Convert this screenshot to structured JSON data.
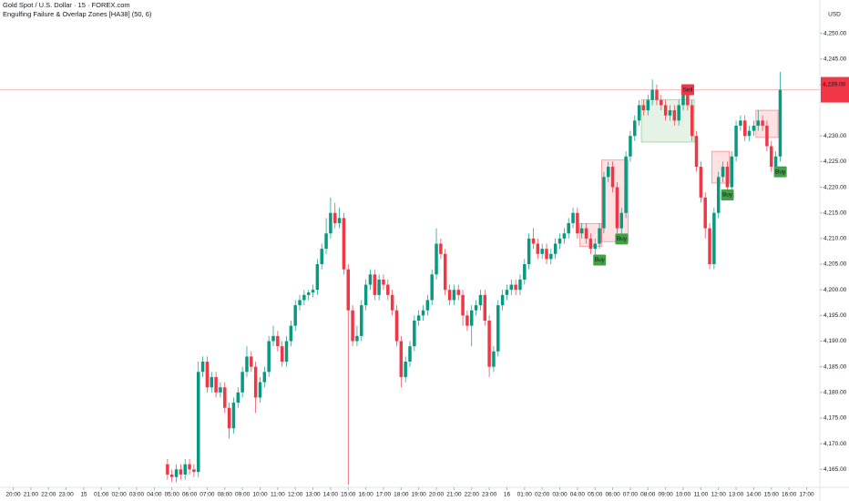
{
  "chart_data": {
    "type": "candlestick",
    "title": "Gold Spot / U.S. Dollar · 15 · FOREX.com",
    "subtitle": "Engulfing Failure & Overlap Zones [HA38] (50, 6)",
    "currency": "USD",
    "up_color": "#089981",
    "down_color": "#f23645",
    "ylim": [
      4161.5,
      4256.5
    ],
    "xlim": [
      -38,
      148
    ],
    "yticks": [
      {
        "value": 4165,
        "label": "4,165.00"
      },
      {
        "value": 4170,
        "label": "4,170.00"
      },
      {
        "value": 4175,
        "label": "4,175.00"
      },
      {
        "value": 4180,
        "label": "4,180.00"
      },
      {
        "value": 4185,
        "label": "4,185.00"
      },
      {
        "value": 4190,
        "label": "4,190.00"
      },
      {
        "value": 4195,
        "label": "4,195.00"
      },
      {
        "value": 4200,
        "label": "4,200.00"
      },
      {
        "value": 4205,
        "label": "4,205.00"
      },
      {
        "value": 4210,
        "label": "4,210.00"
      },
      {
        "value": 4215,
        "label": "4,215.00"
      },
      {
        "value": 4220,
        "label": "4,220.00"
      },
      {
        "value": 4225,
        "label": "4,225.00"
      },
      {
        "value": 4230,
        "label": "4,230.00"
      },
      {
        "value": 4240,
        "label": "4,240.00"
      },
      {
        "value": 4245,
        "label": "4,245.00"
      },
      {
        "value": 4250,
        "label": "4,250.00"
      }
    ],
    "xticks": [
      {
        "value": -35,
        "label": "20:00"
      },
      {
        "value": -31,
        "label": "21:00"
      },
      {
        "value": -27,
        "label": "22:00"
      },
      {
        "value": -23,
        "label": "23:00"
      },
      {
        "value": -19,
        "label": "15"
      },
      {
        "value": -15,
        "label": "01:00"
      },
      {
        "value": -11,
        "label": "02:00"
      },
      {
        "value": -7,
        "label": "03:00"
      },
      {
        "value": -3,
        "label": "04:00"
      },
      {
        "value": 1,
        "label": "05:00"
      },
      {
        "value": 5,
        "label": "06:00"
      },
      {
        "value": 9,
        "label": "07:00"
      },
      {
        "value": 13,
        "label": "08:00"
      },
      {
        "value": 17,
        "label": "09:00"
      },
      {
        "value": 21,
        "label": "10:00"
      },
      {
        "value": 25,
        "label": "11:00"
      },
      {
        "value": 29,
        "label": "12:00"
      },
      {
        "value": 33,
        "label": "13:00"
      },
      {
        "value": 37,
        "label": "14:00"
      },
      {
        "value": 41,
        "label": "15:00"
      },
      {
        "value": 45,
        "label": "16:00"
      },
      {
        "value": 49,
        "label": "17:00"
      },
      {
        "value": 53,
        "label": "18:00"
      },
      {
        "value": 57,
        "label": "19:00"
      },
      {
        "value": 61,
        "label": "20:00"
      },
      {
        "value": 65,
        "label": "21:00"
      },
      {
        "value": 69,
        "label": "22:00"
      },
      {
        "value": 73,
        "label": "23:00"
      },
      {
        "value": 77,
        "label": "16"
      },
      {
        "value": 81,
        "label": "01:00"
      },
      {
        "value": 85,
        "label": "02:00"
      },
      {
        "value": 89,
        "label": "03:00"
      },
      {
        "value": 93,
        "label": "04:00"
      },
      {
        "value": 97,
        "label": "05:00"
      },
      {
        "value": 101,
        "label": "06:00"
      },
      {
        "value": 105,
        "label": "07:00"
      },
      {
        "value": 109,
        "label": "08:00"
      },
      {
        "value": 113,
        "label": "09:00"
      },
      {
        "value": 117,
        "label": "10:00"
      },
      {
        "value": 121,
        "label": "11:00"
      },
      {
        "value": 125,
        "label": "12:00"
      },
      {
        "value": 129,
        "label": "13:00"
      },
      {
        "value": 133,
        "label": "14:00"
      },
      {
        "value": 137,
        "label": "15:00"
      },
      {
        "value": 141,
        "label": "16:00"
      },
      {
        "value": 145,
        "label": "17:00"
      }
    ],
    "last_price": 4239,
    "last_price_label": "4,239.00",
    "candles": [
      [
        4166,
        4167,
        4163,
        4164
      ],
      [
        4164,
        4165,
        4162.5,
        4163.5
      ],
      [
        4163.5,
        4166,
        4162.5,
        4165
      ],
      [
        4165,
        4166,
        4163,
        4164
      ],
      [
        4164,
        4167,
        4163,
        4166
      ],
      [
        4166,
        4167,
        4164,
        4165
      ],
      [
        4165,
        4166,
        4163.5,
        4164.5
      ],
      [
        4164.5,
        4186,
        4163.5,
        4184
      ],
      [
        4184,
        4187,
        4183,
        4186
      ],
      [
        4186,
        4187,
        4180,
        4181
      ],
      [
        4181,
        4184,
        4180,
        4183
      ],
      [
        4183,
        4184,
        4179,
        4180
      ],
      [
        4180,
        4182,
        4179,
        4181
      ],
      [
        4181,
        4182,
        4176,
        4177
      ],
      [
        4177,
        4178,
        4171,
        4173
      ],
      [
        4173,
        4179,
        4172,
        4178
      ],
      [
        4178,
        4181,
        4177,
        4180
      ],
      [
        4180,
        4185,
        4179,
        4184
      ],
      [
        4184,
        4189,
        4183,
        4187
      ],
      [
        4187,
        4188,
        4184,
        4185
      ],
      [
        4185,
        4186,
        4176,
        4179
      ],
      [
        4179,
        4183,
        4178,
        4182
      ],
      [
        4182,
        4185,
        4181,
        4184
      ],
      [
        4184,
        4191,
        4183,
        4190
      ],
      [
        4190,
        4193,
        4189,
        4191
      ],
      [
        4191,
        4192,
        4188,
        4189
      ],
      [
        4189,
        4190,
        4185,
        4186
      ],
      [
        4186,
        4191,
        4185,
        4190
      ],
      [
        4190,
        4194,
        4189,
        4193
      ],
      [
        4193,
        4198,
        4192,
        4197
      ],
      [
        4197,
        4199,
        4196,
        4198
      ],
      [
        4198,
        4200,
        4197,
        4199
      ],
      [
        4199,
        4200,
        4198,
        4199.5
      ],
      [
        4199.5,
        4201,
        4198.5,
        4200
      ],
      [
        4200,
        4206,
        4199,
        4205
      ],
      [
        4205,
        4209,
        4204,
        4208
      ],
      [
        4208,
        4214,
        4207,
        4211
      ],
      [
        4211,
        4218,
        4210,
        4215
      ],
      [
        4215,
        4217,
        4212,
        4213
      ],
      [
        4213,
        4216,
        4212,
        4214
      ],
      [
        4214,
        4215,
        4203,
        4204
      ],
      [
        4204,
        4205,
        4162,
        4196
      ],
      [
        4196,
        4197,
        4189,
        4190
      ],
      [
        4190,
        4193,
        4189,
        4191
      ],
      [
        4191,
        4198,
        4190,
        4197
      ],
      [
        4197,
        4202,
        4196,
        4201
      ],
      [
        4201,
        4204,
        4200,
        4203
      ],
      [
        4203,
        4204,
        4198,
        4199
      ],
      [
        4199,
        4203,
        4198,
        4202
      ],
      [
        4202,
        4203,
        4200,
        4201
      ],
      [
        4201,
        4202,
        4198,
        4199
      ],
      [
        4199,
        4200,
        4195,
        4196
      ],
      [
        4196,
        4197,
        4189,
        4190
      ],
      [
        4190,
        4191,
        4181,
        4183
      ],
      [
        4183,
        4187,
        4182,
        4186
      ],
      [
        4186,
        4190,
        4185,
        4189
      ],
      [
        4189,
        4195,
        4188,
        4194
      ],
      [
        4194,
        4196,
        4193,
        4195
      ],
      [
        4195,
        4197,
        4194,
        4196
      ],
      [
        4196,
        4199,
        4195,
        4198
      ],
      [
        4198,
        4204,
        4197,
        4203
      ],
      [
        4203,
        4212,
        4202,
        4209
      ],
      [
        4209,
        4210,
        4206,
        4207
      ],
      [
        4207,
        4208,
        4199,
        4200
      ],
      [
        4200,
        4201,
        4197,
        4198
      ],
      [
        4198,
        4201,
        4197,
        4200
      ],
      [
        4200,
        4201,
        4198,
        4199
      ],
      [
        4199,
        4200,
        4193,
        4195
      ],
      [
        4195,
        4196,
        4192,
        4193
      ],
      [
        4193,
        4197,
        4189,
        4196
      ],
      [
        4196,
        4198,
        4195,
        4197
      ],
      [
        4197,
        4200,
        4196,
        4199
      ],
      [
        4199,
        4200,
        4193,
        4194
      ],
      [
        4194,
        4195,
        4183,
        4185
      ],
      [
        4185,
        4189,
        4184,
        4188
      ],
      [
        4188,
        4198,
        4187,
        4197
      ],
      [
        4197,
        4200,
        4196,
        4199
      ],
      [
        4199,
        4201,
        4198,
        4200
      ],
      [
        4200,
        4202,
        4199,
        4201
      ],
      [
        4201,
        4202,
        4199,
        4200
      ],
      [
        4200,
        4203,
        4199,
        4202
      ],
      [
        4202,
        4206,
        4201,
        4205
      ],
      [
        4205,
        4211,
        4204,
        4210
      ],
      [
        4210,
        4212,
        4208,
        4209
      ],
      [
        4209,
        4210,
        4206,
        4207
      ],
      [
        4207,
        4209,
        4206,
        4208
      ],
      [
        4208,
        4209,
        4205,
        4206
      ],
      [
        4206,
        4208,
        4205,
        4207
      ],
      [
        4207,
        4210,
        4206,
        4209
      ],
      [
        4209,
        4211,
        4208,
        4210
      ],
      [
        4210,
        4212,
        4209,
        4211
      ],
      [
        4211,
        4214,
        4210,
        4213
      ],
      [
        4213,
        4216,
        4212,
        4215
      ],
      [
        4215,
        4216,
        4210,
        4211
      ],
      [
        4211,
        4213,
        4210,
        4212
      ],
      [
        4212,
        4213,
        4209,
        4210
      ],
      [
        4210,
        4211,
        4207,
        4208
      ],
      [
        4208,
        4210,
        4206,
        4209
      ],
      [
        4209,
        4213,
        4208,
        4212
      ],
      [
        4212,
        4223,
        4211,
        4222
      ],
      [
        4222,
        4225,
        4221,
        4224
      ],
      [
        4224,
        4225,
        4219,
        4220
      ],
      [
        4220,
        4221,
        4211,
        4212
      ],
      [
        4212,
        4216,
        4211,
        4215
      ],
      [
        4215,
        4227,
        4214,
        4226
      ],
      [
        4226,
        4231,
        4225,
        4230
      ],
      [
        4230,
        4234,
        4229,
        4233
      ],
      [
        4233,
        4237,
        4232,
        4236
      ],
      [
        4236,
        4237,
        4234,
        4235
      ],
      [
        4235,
        4238,
        4234,
        4237
      ],
      [
        4237,
        4241,
        4236,
        4239
      ],
      [
        4239,
        4240,
        4236,
        4237
      ],
      [
        4237,
        4238,
        4235,
        4236
      ],
      [
        4236,
        4237,
        4233,
        4234
      ],
      [
        4234,
        4236,
        4233,
        4235
      ],
      [
        4235,
        4236,
        4232,
        4233
      ],
      [
        4233,
        4237,
        4232,
        4236
      ],
      [
        4236,
        4240,
        4235,
        4238
      ],
      [
        4238,
        4239,
        4235,
        4236
      ],
      [
        4236,
        4237,
        4229,
        4230
      ],
      [
        4230,
        4231,
        4223,
        4224
      ],
      [
        4224,
        4225,
        4217,
        4218
      ],
      [
        4218,
        4219,
        4210,
        4212
      ],
      [
        4212,
        4213,
        4204,
        4205
      ],
      [
        4205,
        4216,
        4204,
        4215
      ],
      [
        4215,
        4223,
        4214,
        4222
      ],
      [
        4222,
        4225,
        4221,
        4224
      ],
      [
        4224,
        4225,
        4218,
        4220
      ],
      [
        4220,
        4227,
        4219,
        4226
      ],
      [
        4226,
        4233,
        4225,
        4232
      ],
      [
        4232,
        4234,
        4231,
        4233
      ],
      [
        4233,
        4234,
        4229,
        4230
      ],
      [
        4230,
        4232,
        4229,
        4231
      ],
      [
        4231,
        4233,
        4230,
        4232
      ],
      [
        4232,
        4235,
        4231,
        4233
      ],
      [
        4233,
        4234,
        4231,
        4232
      ],
      [
        4232,
        4233,
        4227,
        4228
      ],
      [
        4228,
        4229,
        4223,
        4224
      ],
      [
        4224,
        4227,
        4223,
        4226
      ],
      [
        4226,
        4242.5,
        4225,
        4239
      ]
    ],
    "zones": [
      {
        "start": 94,
        "end": 98,
        "low": 4208.5,
        "high": 4212.9,
        "color": "#f23645"
      },
      {
        "start": 99,
        "end": 104,
        "low": 4209.4,
        "high": 4225.3,
        "color": "#f23645"
      },
      {
        "start": 108,
        "end": 119,
        "low": 4228.8,
        "high": 4237.1,
        "color": "#4caf50"
      },
      {
        "start": 124,
        "end": 127,
        "low": 4220.8,
        "high": 4227,
        "color": "#f23645"
      },
      {
        "start": 134,
        "end": 138,
        "low": 4229.7,
        "high": 4235,
        "color": "#f23645"
      }
    ],
    "signals": [
      {
        "index": 97,
        "price": 4205.8,
        "label": "Buy",
        "color": "#43a047"
      },
      {
        "index": 102,
        "price": 4209.9,
        "label": "Buy",
        "color": "#43a047"
      },
      {
        "index": 117,
        "price": 4239,
        "label": "Sell",
        "color": "#f23645"
      },
      {
        "index": 126,
        "price": 4218.5,
        "label": "Buy",
        "color": "#43a047"
      },
      {
        "index": 138,
        "price": 4223,
        "label": "Buy",
        "color": "#43a047"
      }
    ]
  }
}
